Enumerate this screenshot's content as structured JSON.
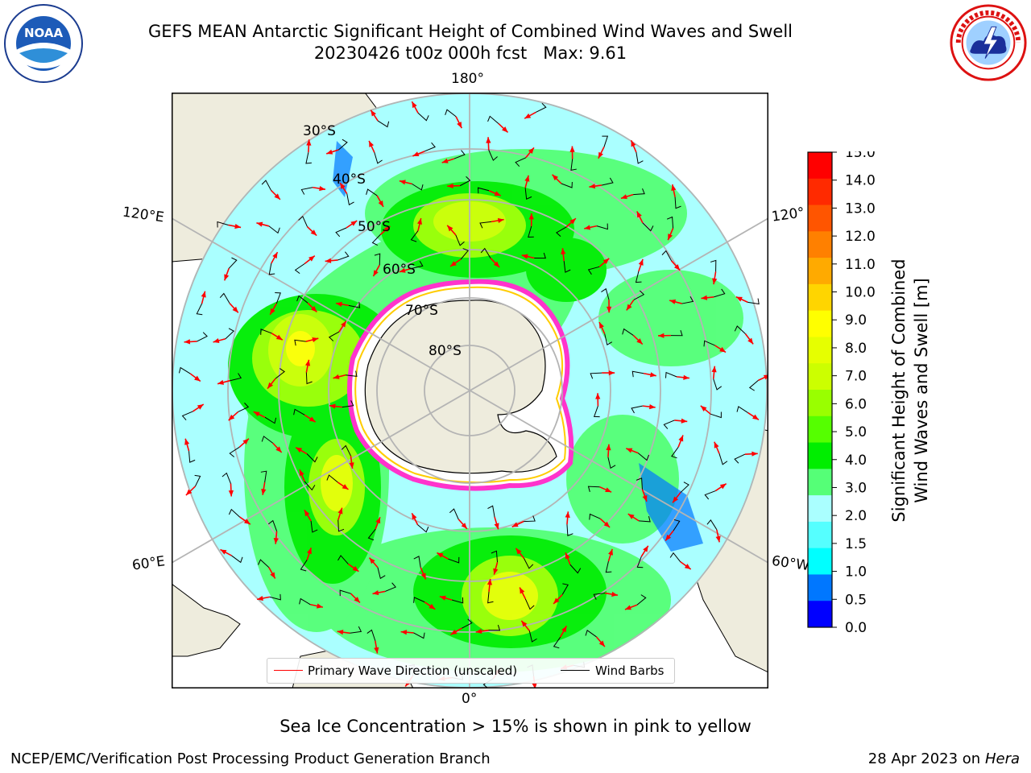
{
  "header": {
    "title_line1": "GEFS MEAN Antarctic Significant Height of Combined Wind Waves and Swell",
    "title_line2": "20230426 t00z 000h fcst   Max: 9.61",
    "noaa_logo_text": "NOAA",
    "noaa_logo_ring_text": "NATIONAL OCEANIC AND ATMOSPHERIC ADMINISTRATION · U.S. DEPARTMENT OF COMMERCE",
    "nws_logo_ring_text": "NATIONAL WEATHER SERVICE"
  },
  "map": {
    "projection": "south-polar-stereographic",
    "longitude_labels": {
      "top": "180°",
      "upper_left": "120°E",
      "upper_right": "120°",
      "lower_left": "60°E",
      "lower_right": "60°W",
      "bottom": "0°"
    },
    "latitude_labels": [
      "30°S",
      "40°S",
      "50°S",
      "60°S",
      "70°S",
      "80°S"
    ],
    "land_color": "#eeecdd",
    "ocean_background_color": "#aaffff",
    "gridline_color": "#b4b4b4",
    "ice_edge_colors": [
      "#ff33cc",
      "#ffcc00"
    ]
  },
  "colorbar": {
    "label_line1": "Significant Height of Combined",
    "label_line2": "Wind Waves and Swell [m]",
    "ticks": [
      "15.0",
      "14.0",
      "13.0",
      "12.0",
      "11.0",
      "10.0",
      "9.0",
      "8.0",
      "7.0",
      "6.0",
      "5.0",
      "4.0",
      "3.0",
      "2.0",
      "1.5",
      "1.0",
      "0.5",
      "0.0"
    ],
    "colors_top_to_bottom": [
      "#ff0000",
      "#ff2a00",
      "#ff5500",
      "#ff8000",
      "#ffaa00",
      "#ffd500",
      "#ffff00",
      "#e6ff00",
      "#ccff00",
      "#99ff00",
      "#55ff00",
      "#00ee00",
      "#55ff77",
      "#aaffff",
      "#55ffff",
      "#00ffff",
      "#0077ff",
      "#0000ff"
    ]
  },
  "legend": {
    "wave_label": "Primary Wave Direction (unscaled)",
    "wave_color": "#ff0000",
    "wind_label": "Wind Barbs",
    "wind_color": "#000000"
  },
  "notes": {
    "ice_note": "Sea Ice Concentration > 15% is shown in pink to yellow"
  },
  "footer": {
    "left": "NCEP/EMC/Verification Post Processing Product Generation Branch",
    "right_date": "28 Apr 2023 on ",
    "right_machine": "Hera"
  }
}
